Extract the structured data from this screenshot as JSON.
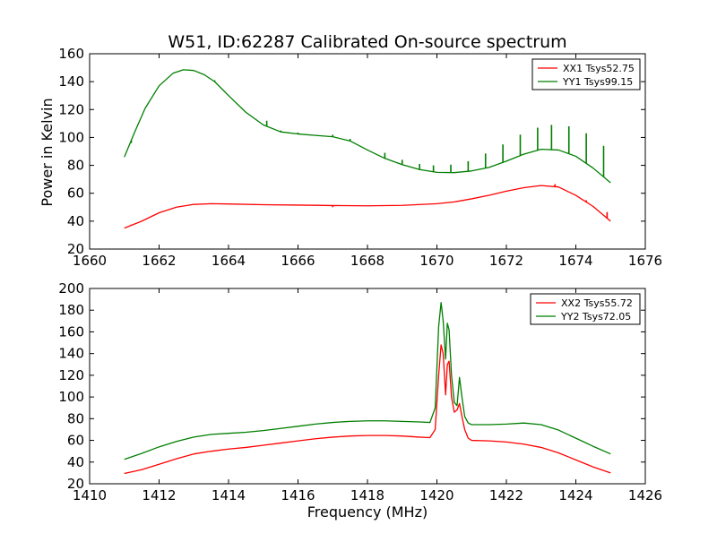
{
  "figure": {
    "title": "W51, ID:62287 Calibrated On-source spectrum",
    "xlabel": "Frequency (MHz)",
    "ylabel": "Power in Kelvin"
  },
  "chart_data": [
    {
      "type": "line",
      "title": "W51, ID:62287 Calibrated On-source spectrum",
      "xlabel": "",
      "ylabel": "Power in Kelvin",
      "xlim": [
        1660,
        1676
      ],
      "ylim": [
        20,
        160
      ],
      "xticks": [
        1660,
        1662,
        1664,
        1666,
        1668,
        1670,
        1672,
        1674,
        1676
      ],
      "yticks": [
        20,
        40,
        60,
        80,
        100,
        120,
        140,
        160
      ],
      "grid": false,
      "legend": "top-right",
      "series": [
        {
          "name": "XX1 Tsys52.75",
          "color": "#ff0000",
          "x": [
            1661.0,
            1661.5,
            1662.0,
            1662.5,
            1663.0,
            1663.5,
            1664.0,
            1665.0,
            1666.0,
            1667.0,
            1668.0,
            1669.0,
            1670.0,
            1670.5,
            1671.0,
            1671.5,
            1672.0,
            1672.5,
            1673.0,
            1673.5,
            1674.0,
            1674.5,
            1675.0
          ],
          "y": [
            35,
            40,
            46,
            50,
            52,
            52.5,
            52.3,
            51.8,
            51.5,
            51.2,
            51.0,
            51.3,
            52.5,
            53.8,
            56,
            58.5,
            61.5,
            64,
            65.5,
            64.5,
            58.5,
            50.5,
            40
          ],
          "spikes": [
            {
              "x": 1661.2,
              "y": 37.5
            },
            {
              "x": 1667.0,
              "y": 50.0
            },
            {
              "x": 1673.4,
              "y": 66.5
            },
            {
              "x": 1674.3,
              "y": 55.0
            },
            {
              "x": 1674.9,
              "y": 46.5
            }
          ]
        },
        {
          "name": "YY1 Tsys99.15",
          "color": "#007f00",
          "x": [
            1661.0,
            1661.3,
            1661.6,
            1662.0,
            1662.4,
            1662.7,
            1663.0,
            1663.3,
            1663.6,
            1664.0,
            1664.5,
            1665.0,
            1665.5,
            1666.0,
            1666.5,
            1667.0,
            1667.5,
            1668.0,
            1668.5,
            1669.0,
            1669.5,
            1670.0,
            1670.5,
            1671.0,
            1671.5,
            1672.0,
            1672.5,
            1673.0,
            1673.5,
            1674.0,
            1674.5,
            1675.0
          ],
          "y": [
            86,
            104,
            121,
            137,
            146,
            148.5,
            148,
            145,
            140,
            130,
            118,
            109,
            104,
            102.5,
            101.5,
            100.5,
            97.5,
            91,
            85,
            80.5,
            77,
            75,
            74.8,
            76,
            78.5,
            83,
            88,
            91.5,
            91,
            86.5,
            78,
            67.5
          ],
          "spikes": [
            {
              "x": 1661.2,
              "y": 96
            },
            {
              "x": 1663.6,
              "y": 141
            },
            {
              "x": 1665.1,
              "y": 112
            },
            {
              "x": 1665.5,
              "y": 105
            },
            {
              "x": 1666.0,
              "y": 103.5
            },
            {
              "x": 1667.0,
              "y": 102
            },
            {
              "x": 1667.5,
              "y": 99
            },
            {
              "x": 1668.5,
              "y": 89
            },
            {
              "x": 1669.0,
              "y": 84
            },
            {
              "x": 1669.5,
              "y": 81
            },
            {
              "x": 1669.9,
              "y": 80
            },
            {
              "x": 1670.4,
              "y": 80.5
            },
            {
              "x": 1670.9,
              "y": 83
            },
            {
              "x": 1671.4,
              "y": 88.5
            },
            {
              "x": 1671.9,
              "y": 95
            },
            {
              "x": 1672.4,
              "y": 102
            },
            {
              "x": 1672.9,
              "y": 107
            },
            {
              "x": 1673.3,
              "y": 109
            },
            {
              "x": 1673.8,
              "y": 108
            },
            {
              "x": 1674.3,
              "y": 103
            },
            {
              "x": 1674.8,
              "y": 94
            }
          ]
        }
      ]
    },
    {
      "type": "line",
      "title": "",
      "xlabel": "Frequency (MHz)",
      "ylabel": "",
      "xlim": [
        1410,
        1426
      ],
      "ylim": [
        20,
        200
      ],
      "xticks": [
        1410,
        1412,
        1414,
        1416,
        1418,
        1420,
        1422,
        1424,
        1426
      ],
      "yticks": [
        20,
        40,
        60,
        80,
        100,
        120,
        140,
        160,
        180,
        200
      ],
      "grid": false,
      "legend": "top-right",
      "series": [
        {
          "name": "XX2 Tsys55.72",
          "color": "#ff0000",
          "x": [
            1411.0,
            1411.5,
            1412.0,
            1412.5,
            1413.0,
            1413.5,
            1414.0,
            1414.5,
            1415.0,
            1415.5,
            1416.0,
            1416.5,
            1417.0,
            1417.5,
            1418.0,
            1418.5,
            1419.0,
            1419.5,
            1419.8,
            1419.95,
            1420.05,
            1420.12,
            1420.18,
            1420.25,
            1420.3,
            1420.35,
            1420.42,
            1420.5,
            1420.58,
            1420.65,
            1420.72,
            1420.8,
            1420.9,
            1421.0,
            1421.5,
            1422.0,
            1422.5,
            1423.0,
            1423.5,
            1424.0,
            1424.5,
            1425.0
          ],
          "y": [
            29.5,
            33,
            38,
            43,
            47.5,
            50,
            52,
            53.5,
            55.5,
            57.5,
            59.5,
            61.5,
            63,
            64,
            64.5,
            64.5,
            64,
            63,
            62.5,
            70,
            120,
            148,
            140,
            102,
            130,
            133,
            100,
            86,
            88,
            94,
            82,
            70,
            62,
            60,
            59.5,
            58.5,
            56.5,
            53.5,
            48.5,
            42,
            35.5,
            30
          ]
        },
        {
          "name": "YY2 Tsys72.05",
          "color": "#007f00",
          "x": [
            1411.0,
            1411.5,
            1412.0,
            1412.5,
            1413.0,
            1413.5,
            1414.0,
            1414.5,
            1415.0,
            1415.5,
            1416.0,
            1416.5,
            1417.0,
            1417.5,
            1418.0,
            1418.5,
            1419.0,
            1419.5,
            1419.8,
            1419.95,
            1420.05,
            1420.12,
            1420.18,
            1420.25,
            1420.3,
            1420.35,
            1420.42,
            1420.5,
            1420.58,
            1420.65,
            1420.72,
            1420.8,
            1420.9,
            1421.0,
            1421.5,
            1422.0,
            1422.5,
            1423.0,
            1423.5,
            1424.0,
            1424.5,
            1425.0
          ],
          "y": [
            42.5,
            48,
            54,
            59,
            63,
            65.5,
            66.5,
            67.5,
            69,
            71,
            73,
            75,
            76.5,
            77.5,
            78,
            78,
            77.5,
            77,
            76.5,
            90,
            165,
            187,
            170,
            135,
            168,
            162,
            120,
            95,
            92,
            118,
            100,
            82,
            76,
            74.5,
            74.5,
            75,
            76,
            74.5,
            69.5,
            62,
            54.5,
            47.5
          ]
        }
      ]
    }
  ]
}
